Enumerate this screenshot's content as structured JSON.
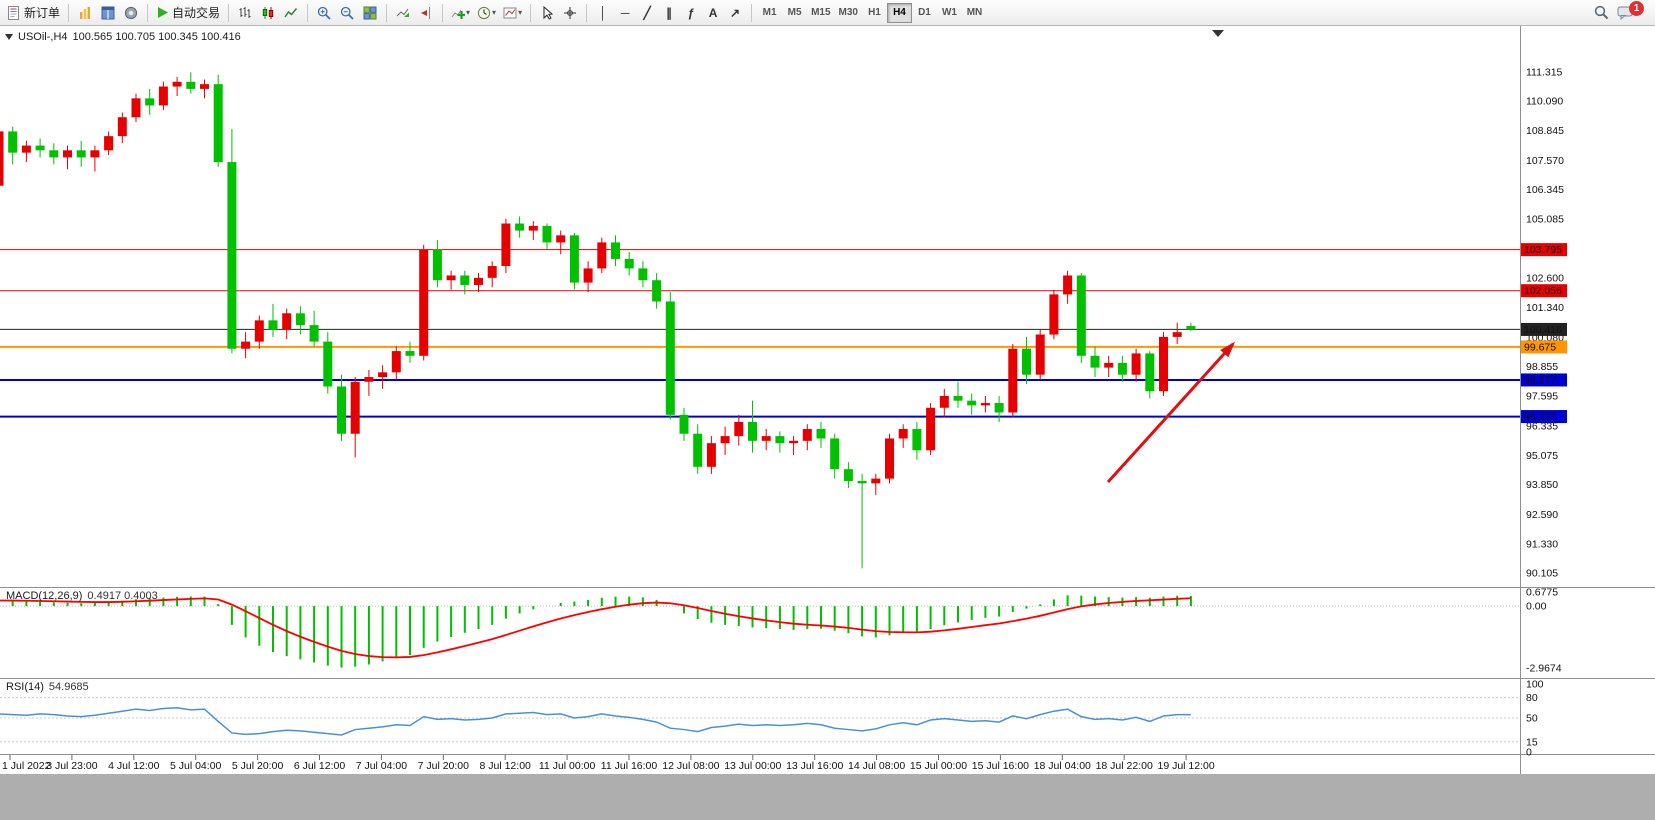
{
  "toolbar": {
    "new_order_label": "新订单",
    "autotrading_label": "自动交易",
    "dropdown_glyph": "▾",
    "line_tools": [
      {
        "name": "vertical-line",
        "glyph": "│"
      },
      {
        "name": "horizontal-line",
        "glyph": "─"
      },
      {
        "name": "trendline",
        "glyph": "╱"
      },
      {
        "name": "equidistant-channel",
        "glyph": "∥"
      },
      {
        "name": "fibonacci-retracement",
        "glyph": "ƒ"
      },
      {
        "name": "text-label",
        "glyph": "A"
      },
      {
        "name": "arrows",
        "glyph": "↗"
      }
    ],
    "timeframes": [
      "M1",
      "M5",
      "M15",
      "M30",
      "H1",
      "H4",
      "D1",
      "W1",
      "MN"
    ],
    "active_timeframe": "H4",
    "notification_count": "1"
  },
  "chart": {
    "title_symbol": "USOil-,H4",
    "title_ohlc": "100.565 100.705 100.345 100.416",
    "indicators": {
      "macd_label": "MACD(12,26,9)",
      "macd_values": "0.4917 0.4003",
      "rsi_label": "RSI(14)",
      "rsi_value": "54.9685"
    }
  },
  "chart_data": {
    "type": "candlestick",
    "symbol": "USOil",
    "timeframe": "H4",
    "colors": {
      "up": "#e60000",
      "down": "#00c000",
      "macd_hist": "#00c000",
      "macd_signal": "#ff0000",
      "rsi_line": "#4a90d9"
    },
    "price_axis_labels": [
      "111.315",
      "110.090",
      "108.845",
      "107.570",
      "106.345",
      "105.085",
      "102.600",
      "101.340",
      "100.080",
      "98.855",
      "97.595",
      "96.335",
      "95.075",
      "93.850",
      "92.590",
      "91.330",
      "90.105"
    ],
    "level_lines": [
      {
        "label": "103.795",
        "price": 103.795,
        "color": "#e80000",
        "width": 1
      },
      {
        "label": "102.056",
        "price": 102.056,
        "color": "#e80000",
        "width": 1
      },
      {
        "label": "100.416",
        "price": 100.416,
        "color": "#222222",
        "width": 1
      },
      {
        "label": "99.675",
        "price": 99.675,
        "color": "#ff9500",
        "width": 2
      },
      {
        "label": "98.277",
        "price": 98.277,
        "color": "#0000d0",
        "width": 2
      },
      {
        "label": "96.727",
        "price": 96.727,
        "color": "#0000d0",
        "width": 2
      }
    ],
    "time_axis_labels": [
      "1 Jul 2022",
      "3 Jul 23:00",
      "4 Jul 12:00",
      "5 Jul 04:00",
      "5 Jul 20:00",
      "6 Jul 12:00",
      "7 Jul 04:00",
      "7 Jul 20:00",
      "8 Jul 12:00",
      "11 Jul 00:00",
      "11 Jul 16:00",
      "12 Jul 08:00",
      "13 Jul 00:00",
      "13 Jul 16:00",
      "14 Jul 08:00",
      "15 Jul 00:00",
      "15 Jul 16:00",
      "18 Jul 04:00",
      "18 Jul 22:00",
      "19 Jul 12:00"
    ],
    "candles_ohlc": [
      [
        106.5,
        109.0,
        106.3,
        108.8
      ],
      [
        108.8,
        109.0,
        107.4,
        107.9
      ],
      [
        107.9,
        108.4,
        107.5,
        108.2
      ],
      [
        108.2,
        108.5,
        107.7,
        108.0
      ],
      [
        108.0,
        108.3,
        107.4,
        107.7
      ],
      [
        107.7,
        108.2,
        107.2,
        108.0
      ],
      [
        108.0,
        108.4,
        107.3,
        107.7
      ],
      [
        107.7,
        108.2,
        107.1,
        108.0
      ],
      [
        108.0,
        108.8,
        107.8,
        108.6
      ],
      [
        108.6,
        109.6,
        108.3,
        109.4
      ],
      [
        109.4,
        110.4,
        109.2,
        110.2
      ],
      [
        110.2,
        110.6,
        109.5,
        109.9
      ],
      [
        109.9,
        110.9,
        109.7,
        110.7
      ],
      [
        110.7,
        111.1,
        110.3,
        110.9
      ],
      [
        110.9,
        111.3,
        110.4,
        110.6
      ],
      [
        110.6,
        111.0,
        110.2,
        110.8
      ],
      [
        110.8,
        111.2,
        107.3,
        107.5
      ],
      [
        107.5,
        108.9,
        99.4,
        99.6
      ],
      [
        99.6,
        100.3,
        99.2,
        99.9
      ],
      [
        99.9,
        101.0,
        99.6,
        100.8
      ],
      [
        100.8,
        101.5,
        100.1,
        100.4
      ],
      [
        100.4,
        101.3,
        100.0,
        101.1
      ],
      [
        101.1,
        101.4,
        100.2,
        100.6
      ],
      [
        100.6,
        101.2,
        99.7,
        99.9
      ],
      [
        99.9,
        100.3,
        97.7,
        98.0
      ],
      [
        98.0,
        98.5,
        95.7,
        96.0
      ],
      [
        96.0,
        98.4,
        95.0,
        98.2
      ],
      [
        98.2,
        98.7,
        97.6,
        98.4
      ],
      [
        98.4,
        98.9,
        97.9,
        98.6
      ],
      [
        98.6,
        99.7,
        98.3,
        99.5
      ],
      [
        99.5,
        99.9,
        99.0,
        99.3
      ],
      [
        99.3,
        104.0,
        99.1,
        103.8
      ],
      [
        103.8,
        104.2,
        102.2,
        102.5
      ],
      [
        102.5,
        102.9,
        102.1,
        102.7
      ],
      [
        102.7,
        102.9,
        101.9,
        102.3
      ],
      [
        102.3,
        102.8,
        102.0,
        102.6
      ],
      [
        102.6,
        103.3,
        102.2,
        103.1
      ],
      [
        103.1,
        105.1,
        102.8,
        104.9
      ],
      [
        104.9,
        105.2,
        104.3,
        104.6
      ],
      [
        104.6,
        105.0,
        104.2,
        104.8
      ],
      [
        104.8,
        104.9,
        103.8,
        104.1
      ],
      [
        104.1,
        104.6,
        103.6,
        104.4
      ],
      [
        104.4,
        104.5,
        102.1,
        102.4
      ],
      [
        102.4,
        103.3,
        102.0,
        103.0
      ],
      [
        103.0,
        104.3,
        102.8,
        104.1
      ],
      [
        104.1,
        104.4,
        103.1,
        103.4
      ],
      [
        103.4,
        103.7,
        102.7,
        103.0
      ],
      [
        103.0,
        103.3,
        102.2,
        102.5
      ],
      [
        102.5,
        102.8,
        101.3,
        101.6
      ],
      [
        101.6,
        102.0,
        96.6,
        96.8
      ],
      [
        96.8,
        97.1,
        95.7,
        96.0
      ],
      [
        96.0,
        96.4,
        94.3,
        94.6
      ],
      [
        94.6,
        95.9,
        94.3,
        95.6
      ],
      [
        95.6,
        96.3,
        95.1,
        95.9
      ],
      [
        95.9,
        96.8,
        95.5,
        96.5
      ],
      [
        96.5,
        97.4,
        95.2,
        95.7
      ],
      [
        95.7,
        96.2,
        95.3,
        95.9
      ],
      [
        95.9,
        96.1,
        95.2,
        95.6
      ],
      [
        95.6,
        95.9,
        95.1,
        95.7
      ],
      [
        95.7,
        96.4,
        95.3,
        96.2
      ],
      [
        96.2,
        96.5,
        95.4,
        95.8
      ],
      [
        95.8,
        96.0,
        94.1,
        94.5
      ],
      [
        94.5,
        94.8,
        93.7,
        94.0
      ],
      [
        94.0,
        94.3,
        90.3,
        93.9
      ],
      [
        93.9,
        94.3,
        93.4,
        94.1
      ],
      [
        94.1,
        96.0,
        93.9,
        95.8
      ],
      [
        95.8,
        96.4,
        95.4,
        96.2
      ],
      [
        96.2,
        96.5,
        94.9,
        95.3
      ],
      [
        95.3,
        97.3,
        95.1,
        97.1
      ],
      [
        97.1,
        97.9,
        96.7,
        97.6
      ],
      [
        97.6,
        98.2,
        97.1,
        97.4
      ],
      [
        97.4,
        97.7,
        96.8,
        97.2
      ],
      [
        97.2,
        97.6,
        96.9,
        97.3
      ],
      [
        97.3,
        97.6,
        96.5,
        96.9
      ],
      [
        96.9,
        99.8,
        96.7,
        99.6
      ],
      [
        99.6,
        100.1,
        98.1,
        98.5
      ],
      [
        98.5,
        100.4,
        98.3,
        100.2
      ],
      [
        100.2,
        102.1,
        100.0,
        101.9
      ],
      [
        101.9,
        102.9,
        101.5,
        102.7
      ],
      [
        102.7,
        102.8,
        99.0,
        99.3
      ],
      [
        99.3,
        99.7,
        98.4,
        98.8
      ],
      [
        98.8,
        99.3,
        98.4,
        99.0
      ],
      [
        99.0,
        99.3,
        98.2,
        98.5
      ],
      [
        98.5,
        99.6,
        98.2,
        99.4
      ],
      [
        99.4,
        99.5,
        97.5,
        97.8
      ],
      [
        97.8,
        100.3,
        97.6,
        100.1
      ],
      [
        100.1,
        100.7,
        99.8,
        100.3
      ],
      [
        100.565,
        100.705,
        100.345,
        100.416
      ]
    ],
    "macd": {
      "axis_labels": [
        "0.6775",
        "0.00",
        "-2.9674"
      ],
      "range": [
        -2.9674,
        0.6775
      ],
      "values": [
        0.27,
        0.25,
        0.22,
        0.2,
        0.18,
        0.16,
        0.14,
        0.16,
        0.2,
        0.26,
        0.33,
        0.37,
        0.41,
        0.44,
        0.46,
        0.46,
        0.1,
        -0.9,
        -1.5,
        -1.9,
        -2.2,
        -2.4,
        -2.55,
        -2.7,
        -2.85,
        -2.95,
        -2.9,
        -2.8,
        -2.65,
        -2.5,
        -2.35,
        -2.0,
        -1.7,
        -1.48,
        -1.28,
        -1.1,
        -0.9,
        -0.6,
        -0.35,
        -0.15,
        0.0,
        0.15,
        0.22,
        0.3,
        0.4,
        0.45,
        0.46,
        0.42,
        0.3,
        0.0,
        -0.35,
        -0.62,
        -0.8,
        -0.9,
        -0.95,
        -1.02,
        -1.06,
        -1.1,
        -1.14,
        -1.1,
        -1.08,
        -1.18,
        -1.3,
        -1.45,
        -1.5,
        -1.4,
        -1.3,
        -1.28,
        -1.1,
        -0.92,
        -0.78,
        -0.66,
        -0.56,
        -0.5,
        -0.28,
        -0.12,
        0.08,
        0.32,
        0.52,
        0.5,
        0.46,
        0.43,
        0.41,
        0.43,
        0.4,
        0.46,
        0.5,
        0.49
      ]
    },
    "rsi": {
      "axis_labels": [
        "100",
        "80",
        "50",
        "15",
        "0"
      ],
      "levels": [
        80,
        50,
        15
      ],
      "values": [
        56,
        55,
        54,
        56,
        55,
        53,
        52,
        54,
        57,
        60,
        63,
        61,
        64,
        65,
        62,
        63,
        45,
        28,
        26,
        27,
        30,
        32,
        31,
        29,
        27,
        25,
        33,
        35,
        37,
        40,
        39,
        52,
        48,
        49,
        47,
        48,
        50,
        56,
        57,
        58,
        55,
        56,
        50,
        52,
        56,
        53,
        51,
        48,
        44,
        35,
        33,
        30,
        36,
        38,
        41,
        39,
        40,
        39,
        40,
        42,
        40,
        35,
        33,
        31,
        34,
        40,
        43,
        40,
        47,
        49,
        47,
        45,
        46,
        44,
        53,
        49,
        55,
        60,
        63,
        52,
        48,
        49,
        47,
        51,
        45,
        53,
        55,
        55
      ]
    },
    "annotation_arrow": {
      "from": [
        1108,
        456
      ],
      "to": [
        1233,
        318
      ],
      "color": "#e01010"
    }
  }
}
